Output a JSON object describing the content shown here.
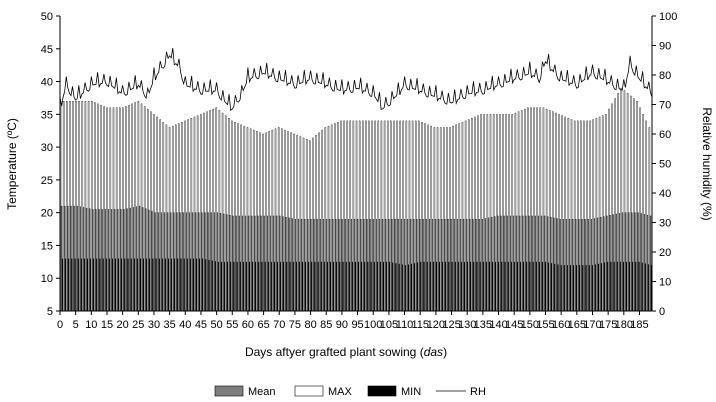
{
  "chart_data": {
    "type": "bar",
    "xlabel": "Days aftyer grafted plant sowing",
    "xlabel_unit": "das",
    "ylabel_left": "Temperature (ºC)",
    "ylabel_right": "Relative humidity (%)",
    "ylim_left": [
      5,
      50
    ],
    "ylim_right": [
      0,
      100
    ],
    "yticks_left": [
      5,
      10,
      15,
      20,
      25,
      30,
      35,
      40,
      45,
      50
    ],
    "yticks_right": [
      0,
      10,
      20,
      30,
      40,
      50,
      60,
      70,
      80,
      90,
      100
    ],
    "xlim": [
      0,
      189
    ],
    "xticks": [
      0,
      5,
      10,
      15,
      20,
      25,
      30,
      35,
      40,
      45,
      50,
      55,
      60,
      65,
      70,
      75,
      80,
      85,
      90,
      95,
      100,
      105,
      110,
      115,
      120,
      125,
      130,
      135,
      140,
      145,
      150,
      155,
      160,
      165,
      170,
      175,
      180,
      185
    ],
    "grid": false,
    "legend_position": "bottom",
    "legend": [
      "Mean",
      "MAX",
      "MIN",
      "RH"
    ],
    "colors": {
      "mean": "#7f7f7f",
      "max": "#ffffff",
      "min": "#000000",
      "rh": "#000000"
    },
    "series": [
      {
        "name": "MAX",
        "axis": "left",
        "points": [
          [
            0,
            37
          ],
          [
            5,
            37
          ],
          [
            10,
            37
          ],
          [
            15,
            36
          ],
          [
            20,
            36
          ],
          [
            25,
            37
          ],
          [
            30,
            35
          ],
          [
            35,
            33
          ],
          [
            40,
            34
          ],
          [
            45,
            35
          ],
          [
            50,
            36
          ],
          [
            55,
            34
          ],
          [
            60,
            33
          ],
          [
            65,
            32
          ],
          [
            70,
            33
          ],
          [
            75,
            32
          ],
          [
            80,
            31
          ],
          [
            85,
            33
          ],
          [
            90,
            34
          ],
          [
            95,
            34
          ],
          [
            100,
            34
          ],
          [
            105,
            34
          ],
          [
            110,
            34
          ],
          [
            115,
            34
          ],
          [
            120,
            33
          ],
          [
            125,
            33
          ],
          [
            130,
            34
          ],
          [
            135,
            35
          ],
          [
            140,
            35
          ],
          [
            145,
            35
          ],
          [
            150,
            36
          ],
          [
            155,
            36
          ],
          [
            160,
            35
          ],
          [
            165,
            34
          ],
          [
            170,
            34
          ],
          [
            175,
            35
          ],
          [
            180,
            39
          ],
          [
            185,
            37
          ],
          [
            189,
            33
          ]
        ]
      },
      {
        "name": "Mean",
        "axis": "left",
        "points": [
          [
            0,
            21
          ],
          [
            5,
            21
          ],
          [
            10,
            20.5
          ],
          [
            15,
            20.5
          ],
          [
            20,
            20.5
          ],
          [
            25,
            21
          ],
          [
            30,
            20
          ],
          [
            35,
            20
          ],
          [
            40,
            20
          ],
          [
            45,
            20
          ],
          [
            50,
            20
          ],
          [
            55,
            19.5
          ],
          [
            60,
            19.5
          ],
          [
            65,
            19.5
          ],
          [
            70,
            19.5
          ],
          [
            75,
            19
          ],
          [
            80,
            19
          ],
          [
            85,
            19
          ],
          [
            90,
            19
          ],
          [
            95,
            19
          ],
          [
            100,
            19
          ],
          [
            105,
            19
          ],
          [
            110,
            19
          ],
          [
            115,
            19
          ],
          [
            120,
            19
          ],
          [
            125,
            19
          ],
          [
            130,
            19
          ],
          [
            135,
            19
          ],
          [
            140,
            19.5
          ],
          [
            145,
            19.5
          ],
          [
            150,
            19.5
          ],
          [
            155,
            19.5
          ],
          [
            160,
            19
          ],
          [
            165,
            19
          ],
          [
            170,
            19
          ],
          [
            175,
            19.5
          ],
          [
            180,
            20
          ],
          [
            185,
            20
          ],
          [
            189,
            19.5
          ]
        ]
      },
      {
        "name": "MIN",
        "axis": "left",
        "points": [
          [
            0,
            13
          ],
          [
            5,
            13
          ],
          [
            10,
            13
          ],
          [
            15,
            13
          ],
          [
            20,
            13
          ],
          [
            25,
            13
          ],
          [
            30,
            13
          ],
          [
            35,
            13
          ],
          [
            40,
            13
          ],
          [
            45,
            13
          ],
          [
            50,
            12.5
          ],
          [
            55,
            12.5
          ],
          [
            60,
            12.5
          ],
          [
            65,
            12.5
          ],
          [
            70,
            12.5
          ],
          [
            75,
            12.5
          ],
          [
            80,
            12.5
          ],
          [
            85,
            12.5
          ],
          [
            90,
            12.5
          ],
          [
            95,
            12.5
          ],
          [
            100,
            12.5
          ],
          [
            105,
            12.5
          ],
          [
            110,
            12
          ],
          [
            115,
            12.5
          ],
          [
            120,
            12.5
          ],
          [
            125,
            12.5
          ],
          [
            130,
            12.5
          ],
          [
            135,
            12.5
          ],
          [
            140,
            12.5
          ],
          [
            145,
            12.5
          ],
          [
            150,
            12.5
          ],
          [
            155,
            12.5
          ],
          [
            160,
            12
          ],
          [
            165,
            12
          ],
          [
            170,
            12
          ],
          [
            175,
            12.5
          ],
          [
            180,
            12.5
          ],
          [
            185,
            12.5
          ],
          [
            189,
            12
          ]
        ]
      },
      {
        "name": "RH",
        "axis": "right",
        "points": [
          [
            0,
            70
          ],
          [
            2,
            78
          ],
          [
            5,
            73
          ],
          [
            10,
            78
          ],
          [
            15,
            79
          ],
          [
            20,
            75
          ],
          [
            25,
            78
          ],
          [
            28,
            74
          ],
          [
            30,
            80
          ],
          [
            35,
            88
          ],
          [
            38,
            84
          ],
          [
            40,
            78
          ],
          [
            45,
            76
          ],
          [
            50,
            76
          ],
          [
            53,
            72
          ],
          [
            55,
            70
          ],
          [
            58,
            75
          ],
          [
            60,
            80
          ],
          [
            65,
            82
          ],
          [
            70,
            80
          ],
          [
            75,
            78
          ],
          [
            80,
            80
          ],
          [
            85,
            78
          ],
          [
            90,
            76
          ],
          [
            95,
            77
          ],
          [
            100,
            75
          ],
          [
            103,
            70
          ],
          [
            105,
            72
          ],
          [
            108,
            75
          ],
          [
            110,
            78
          ],
          [
            115,
            76
          ],
          [
            120,
            74
          ],
          [
            125,
            72
          ],
          [
            130,
            75
          ],
          [
            135,
            76
          ],
          [
            140,
            78
          ],
          [
            145,
            80
          ],
          [
            150,
            82
          ],
          [
            153,
            80
          ],
          [
            155,
            86
          ],
          [
            158,
            82
          ],
          [
            160,
            80
          ],
          [
            165,
            78
          ],
          [
            170,
            82
          ],
          [
            175,
            79
          ],
          [
            180,
            76
          ],
          [
            182,
            85
          ],
          [
            185,
            80
          ],
          [
            189,
            75
          ]
        ]
      }
    ]
  }
}
